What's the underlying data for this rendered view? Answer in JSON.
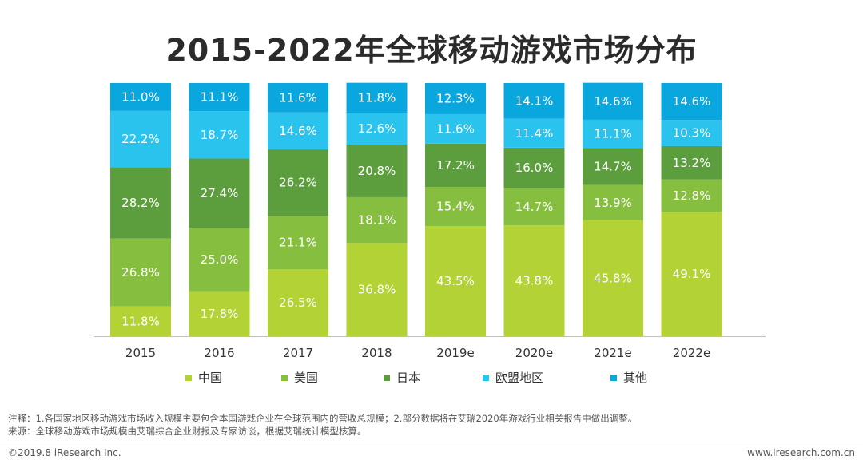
{
  "page": {
    "title": "2015-2022年全球移动游戏市场分布",
    "note1": "注释：1.各国家地区移动游戏市场收入规模主要包含本国游戏企业在全球范围内的营收总规模；2.部分数据将在艾瑞2020年游戏行业相关报告中做出调整。",
    "note2": "来源：全球移动游戏市场规模由艾瑞综合企业财报及专家访谈，根据艾瑞统计模型核算。",
    "copyright": "©2019.8 iResearch Inc.",
    "website": "www.iresearch.com.cn"
  },
  "chart_data": {
    "type": "bar",
    "stacked": true,
    "percent": true,
    "title": "2015-2022年全球移动游戏市场分布",
    "xlabel": "",
    "ylabel": "",
    "ylim": [
      0,
      100
    ],
    "legend_position": "bottom",
    "grid": false,
    "categories": [
      "2015",
      "2016",
      "2017",
      "2018",
      "2019e",
      "2020e",
      "2021e",
      "2022e"
    ],
    "labels": [
      [
        "11.8%",
        "17.8%",
        "26.5%",
        "36.8%",
        "43.5%",
        "43.8%",
        "45.8%",
        "49.1%"
      ],
      [
        "26.8%",
        "25.0%",
        "21.1%",
        "18.1%",
        "15.4%",
        "14.7%",
        "13.9%",
        "12.8%"
      ],
      [
        "28.2%",
        "27.4%",
        "26.2%",
        "20.8%",
        "17.2%",
        "16.0%",
        "14.7%",
        "13.2%"
      ],
      [
        "22.2%",
        "18.7%",
        "14.6%",
        "12.6%",
        "11.6%",
        "11.4%",
        "11.1%",
        "10.3%"
      ],
      [
        "11.0%",
        "11.1%",
        "11.6%",
        "11.8%",
        "12.3%",
        "14.1%",
        "14.6%",
        "14.6%"
      ]
    ],
    "series": [
      {
        "name": "中国",
        "color": "#b2d235",
        "values": [
          11.8,
          17.8,
          26.5,
          36.8,
          43.5,
          43.8,
          45.8,
          49.1
        ]
      },
      {
        "name": "美国",
        "color": "#86bf3f",
        "values": [
          26.8,
          25.0,
          21.1,
          18.1,
          15.4,
          14.7,
          13.9,
          12.8
        ]
      },
      {
        "name": "日本",
        "color": "#5c9e3d",
        "values": [
          28.2,
          27.4,
          26.2,
          20.8,
          17.2,
          16.0,
          14.7,
          13.2
        ]
      },
      {
        "name": "欧盟地区",
        "color": "#29c3ee",
        "values": [
          22.2,
          18.7,
          14.6,
          12.6,
          11.6,
          11.4,
          11.1,
          10.3
        ]
      },
      {
        "name": "其他",
        "color": "#0aa7df",
        "values": [
          11.0,
          11.1,
          11.6,
          11.8,
          12.3,
          14.1,
          14.6,
          14.6
        ]
      }
    ]
  }
}
